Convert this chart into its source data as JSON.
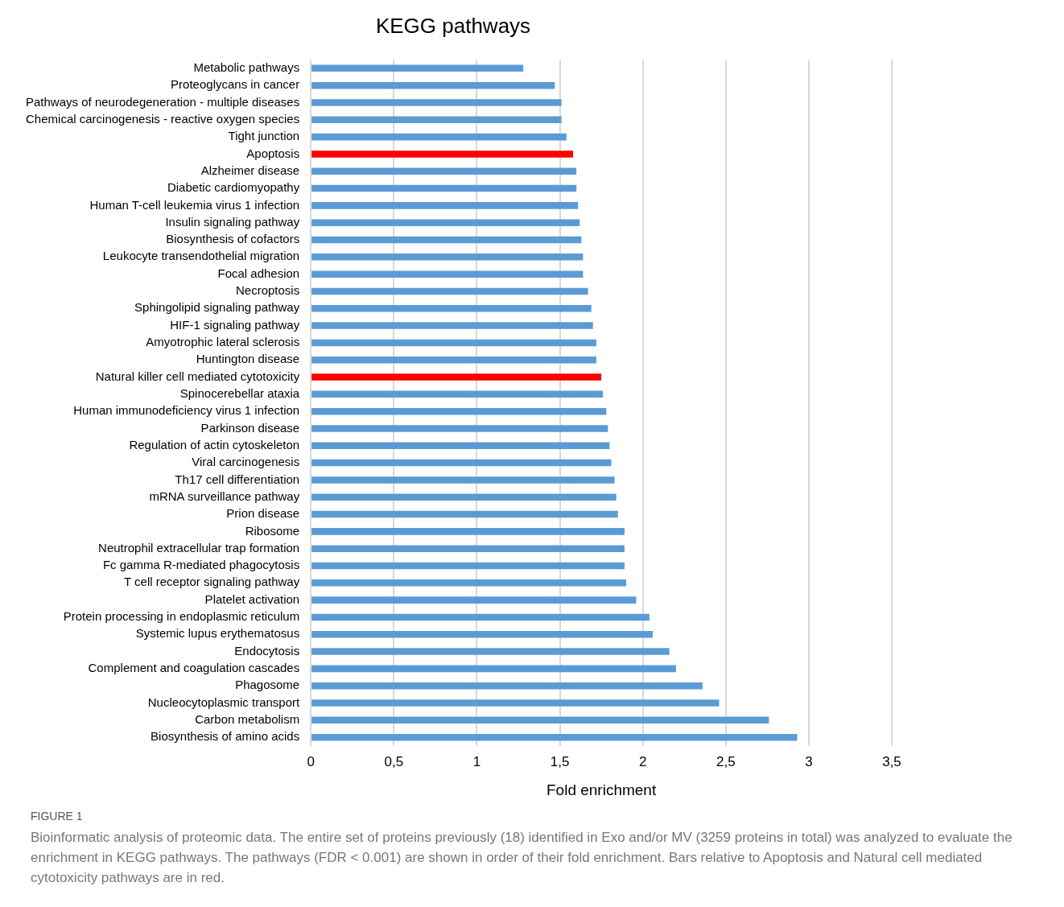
{
  "chart_data": {
    "type": "bar",
    "orientation": "horizontal",
    "title": "KEGG pathways",
    "xlabel": "Fold enrichment",
    "categories": [
      "Metabolic pathways",
      "Proteoglycans in cancer",
      "Pathways of neurodegeneration - multiple diseases",
      "Chemical carcinogenesis - reactive oxygen species",
      "Tight junction",
      "Apoptosis",
      "Alzheimer disease",
      "Diabetic cardiomyopathy",
      "Human T-cell leukemia virus 1 infection",
      "Insulin signaling pathway",
      "Biosynthesis of cofactors",
      "Leukocyte transendothelial migration",
      "Focal adhesion",
      "Necroptosis",
      "Sphingolipid signaling pathway",
      "HIF-1 signaling pathway",
      "Amyotrophic lateral sclerosis",
      "Huntington disease",
      "Natural killer cell mediated cytotoxicity",
      "Spinocerebellar ataxia",
      "Human immunodeficiency virus 1 infection",
      "Parkinson disease",
      "Regulation of actin cytoskeleton",
      "Viral carcinogenesis",
      "Th17 cell differentiation",
      "mRNA surveillance pathway",
      "Prion disease",
      "Ribosome",
      "Neutrophil extracellular trap formation",
      "Fc gamma R-mediated phagocytosis",
      "T cell receptor signaling pathway",
      "Platelet activation",
      "Protein processing in endoplasmic reticulum",
      "Systemic lupus erythematosus",
      "Endocytosis",
      "Complement and coagulation cascades",
      "Phagosome",
      "Nucleocytoplasmic transport",
      "Carbon metabolism",
      "Biosynthesis of amino acids"
    ],
    "values": [
      1.28,
      1.47,
      1.51,
      1.51,
      1.54,
      1.58,
      1.6,
      1.6,
      1.61,
      1.62,
      1.63,
      1.64,
      1.64,
      1.67,
      1.69,
      1.7,
      1.72,
      1.72,
      1.75,
      1.76,
      1.78,
      1.79,
      1.8,
      1.81,
      1.83,
      1.84,
      1.85,
      1.89,
      1.89,
      1.89,
      1.9,
      1.96,
      2.04,
      2.06,
      2.16,
      2.2,
      2.36,
      2.46,
      2.76,
      2.93
    ],
    "colors": [
      "#5b9bd5",
      "#5b9bd5",
      "#5b9bd5",
      "#5b9bd5",
      "#5b9bd5",
      "#ff0000",
      "#5b9bd5",
      "#5b9bd5",
      "#5b9bd5",
      "#5b9bd5",
      "#5b9bd5",
      "#5b9bd5",
      "#5b9bd5",
      "#5b9bd5",
      "#5b9bd5",
      "#5b9bd5",
      "#5b9bd5",
      "#5b9bd5",
      "#ff0000",
      "#5b9bd5",
      "#5b9bd5",
      "#5b9bd5",
      "#5b9bd5",
      "#5b9bd5",
      "#5b9bd5",
      "#5b9bd5",
      "#5b9bd5",
      "#5b9bd5",
      "#5b9bd5",
      "#5b9bd5",
      "#5b9bd5",
      "#5b9bd5",
      "#5b9bd5",
      "#5b9bd5",
      "#5b9bd5",
      "#5b9bd5",
      "#5b9bd5",
      "#5b9bd5",
      "#5b9bd5",
      "#5b9bd5"
    ],
    "xlim": [
      0,
      3.5
    ],
    "xticks": [
      0,
      {
        "value": 0.5,
        "label": "0,5"
      },
      1,
      {
        "value": 1.5,
        "label": "1,5"
      },
      2,
      {
        "value": 2.5,
        "label": "2,5"
      },
      3,
      {
        "value": 3.5,
        "label": "3,5"
      }
    ],
    "grid": "x",
    "legend": false,
    "annotations": [
      "FIGURE 1",
      "Bioinformatic analysis of proteomic data. The entire set of proteins previously (18) identified in Exo and/or MV (3259 proteins in total) was analyzed to evaluate the enrichment in KEGG pathways. The pathways (FDR < 0.001) are shown in order of their fold enrichment. Bars relative to Apoptosis and Natural cell mediated cytotoxicity pathways are in red."
    ]
  }
}
